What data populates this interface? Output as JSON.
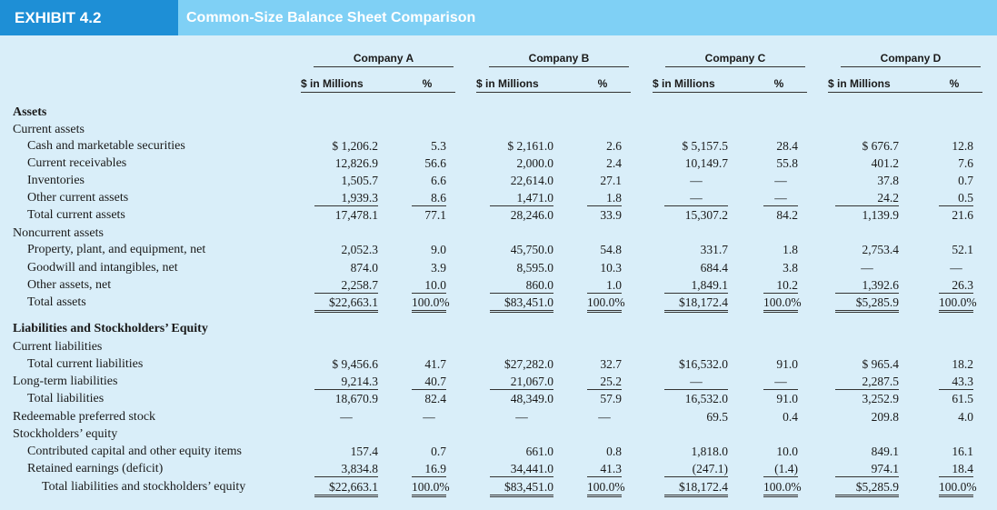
{
  "exhibit": {
    "number": "EXHIBIT 4.2",
    "title": "Common-Size Balance Sheet Comparison"
  },
  "companies": [
    {
      "name": "Company A",
      "amount_header": "$ in Millions",
      "pct_header": "%"
    },
    {
      "name": "Company B",
      "amount_header": "$ in Millions",
      "pct_header": "%"
    },
    {
      "name": "Company C",
      "amount_header": "$ in Millions",
      "pct_header": "%"
    },
    {
      "name": "Company D",
      "amount_header": "$ in Millions",
      "pct_header": "%"
    }
  ],
  "rows": [
    {
      "label": "Assets",
      "style": "section"
    },
    {
      "label": "Current assets",
      "style": "group"
    },
    {
      "label": "Cash and marketable securities",
      "style": "item",
      "values": [
        "$ 1,206.2",
        "5.3",
        "$ 2,161.0",
        "2.6",
        "$ 5,157.5",
        "28.4",
        "$ 676.7",
        "12.8"
      ]
    },
    {
      "label": "Current receivables",
      "style": "item",
      "values": [
        "12,826.9",
        "56.6",
        "2,000.0",
        "2.4",
        "10,149.7",
        "55.8",
        "401.2",
        "7.6"
      ]
    },
    {
      "label": "Inventories",
      "style": "item",
      "values": [
        "1,505.7",
        "6.6",
        "22,614.0",
        "27.1",
        "—",
        "—",
        "37.8",
        "0.7"
      ]
    },
    {
      "label": "Other current assets",
      "style": "item",
      "values": [
        "1,939.3",
        "8.6",
        "1,471.0",
        "1.8",
        "—",
        "—",
        "24.2",
        "0.5"
      ],
      "underline": [
        1,
        1,
        1,
        1,
        1,
        1,
        1,
        1
      ]
    },
    {
      "label": "Total current assets",
      "style": "item",
      "values": [
        "17,478.1",
        "77.1",
        "28,246.0",
        "33.9",
        "15,307.2",
        "84.2",
        "1,139.9",
        "21.6"
      ]
    },
    {
      "label": "Noncurrent assets",
      "style": "group"
    },
    {
      "label": "Property, plant, and equipment, net",
      "style": "item",
      "values": [
        "2,052.3",
        "9.0",
        "45,750.0",
        "54.8",
        "331.7",
        "1.8",
        "2,753.4",
        "52.1"
      ]
    },
    {
      "label": "Goodwill and intangibles, net",
      "style": "item",
      "values": [
        "874.0",
        "3.9",
        "8,595.0",
        "10.3",
        "684.4",
        "3.8",
        "—",
        "—"
      ]
    },
    {
      "label": "Other assets, net",
      "style": "item",
      "values": [
        "2,258.7",
        "10.0",
        "860.0",
        "1.0",
        "1,849.1",
        "10.2",
        "1,392.6",
        "26.3"
      ],
      "underline": [
        1,
        1,
        1,
        1,
        1,
        1,
        1,
        1
      ]
    },
    {
      "label": "Total assets",
      "style": "item",
      "values": [
        "$22,663.1",
        "100.0%",
        "$83,451.0",
        "100.0%",
        "$18,172.4",
        "100.0%",
        "$5,285.9",
        "100.0%"
      ],
      "underline": [
        2,
        2,
        2,
        2,
        2,
        2,
        2,
        2
      ]
    },
    {
      "label": "Liabilities and Stockholders’ Equity",
      "style": "section"
    },
    {
      "label": "Current liabilities",
      "style": "group"
    },
    {
      "label": "Total current liabilities",
      "style": "item",
      "values": [
        "$ 9,456.6",
        "41.7",
        "$27,282.0",
        "32.7",
        "$16,532.0",
        "91.0",
        "$ 965.4",
        "18.2"
      ]
    },
    {
      "label": "Long-term liabilities",
      "style": "group",
      "values": [
        "9,214.3",
        "40.7",
        "21,067.0",
        "25.2",
        "—",
        "—",
        "2,287.5",
        "43.3"
      ],
      "underline": [
        1,
        1,
        1,
        1,
        1,
        1,
        1,
        1
      ]
    },
    {
      "label": "Total liabilities",
      "style": "item",
      "values": [
        "18,670.9",
        "82.4",
        "48,349.0",
        "57.9",
        "16,532.0",
        "91.0",
        "3,252.9",
        "61.5"
      ]
    },
    {
      "label": "Redeemable preferred stock",
      "style": "group",
      "values": [
        "—",
        "—",
        "—",
        "—",
        "69.5",
        "0.4",
        "209.8",
        "4.0"
      ]
    },
    {
      "label": "Stockholders’ equity",
      "style": "group"
    },
    {
      "label": "Contributed capital and other equity items",
      "style": "item",
      "values": [
        "157.4",
        "0.7",
        "661.0",
        "0.8",
        "1,818.0",
        "10.0",
        "849.1",
        "16.1"
      ]
    },
    {
      "label": "Retained earnings (deficit)",
      "style": "item",
      "values": [
        "3,834.8",
        "16.9",
        "34,441.0",
        "41.3",
        "(247.1)",
        "(1.4)",
        "974.1",
        "18.4"
      ],
      "underline": [
        1,
        1,
        1,
        1,
        1,
        1,
        1,
        1
      ]
    },
    {
      "label": "Total liabilities and stockholders’ equity",
      "style": "total",
      "values": [
        "$22,663.1",
        "100.0%",
        "$83,451.0",
        "100.0%",
        "$18,172.4",
        "100.0%",
        "$5,285.9",
        "100.0%"
      ],
      "underline": [
        2,
        2,
        2,
        2,
        2,
        2,
        2,
        2
      ]
    }
  ]
}
